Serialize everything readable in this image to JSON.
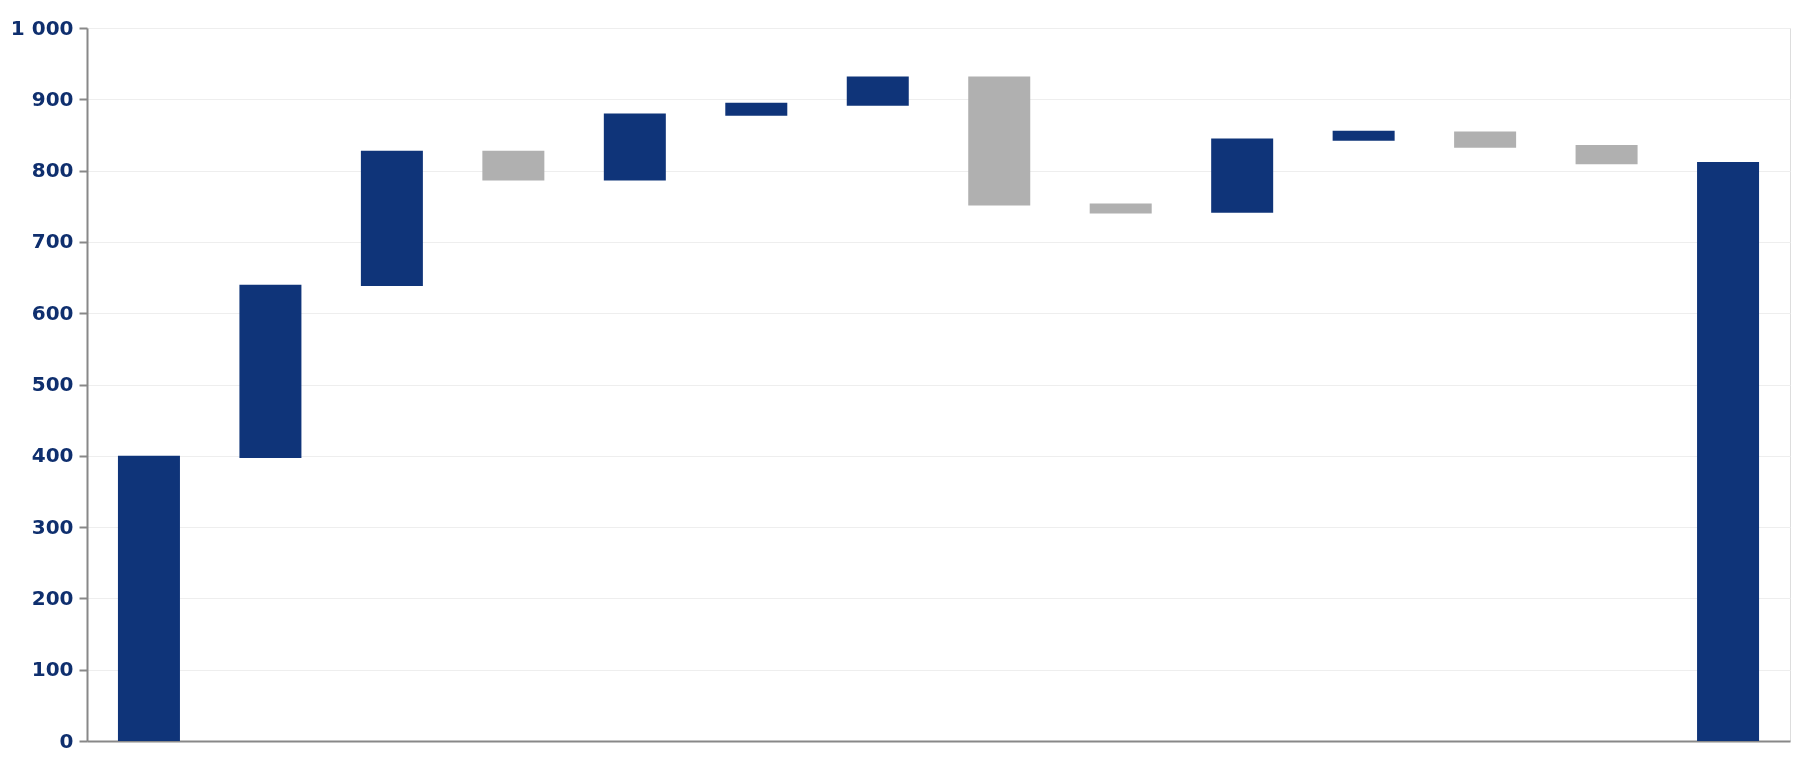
{
  "chart_data": {
    "type": "bar",
    "categories": [
      null,
      null,
      null,
      null,
      null,
      null,
      null,
      null,
      null,
      null,
      null,
      null,
      null,
      null
    ],
    "values": [
      400,
      243,
      190,
      42,
      94,
      18,
      41,
      181,
      14,
      104,
      14,
      23,
      27,
      812
    ],
    "base": [
      0,
      397,
      638,
      786,
      786,
      877,
      891,
      751,
      740,
      741,
      842,
      832,
      809,
      0
    ],
    "colors": [
      "#0f3479",
      "#0f3479",
      "#0f3479",
      "#b0b0b0",
      "#0f3479",
      "#0f3479",
      "#0f3479",
      "#b0b0b0",
      "#b0b0b0",
      "#0f3479",
      "#0f3479",
      "#b0b0b0",
      "#b0b0b0",
      "#0f3479"
    ],
    "ylim": [
      0,
      1000
    ],
    "yticks": [
      0,
      100,
      200,
      300,
      400,
      500,
      600,
      700,
      800,
      900,
      {
        "value": 1000,
        "label": "1 000"
      }
    ],
    "grid": "y",
    "tick_labels": "y"
  }
}
